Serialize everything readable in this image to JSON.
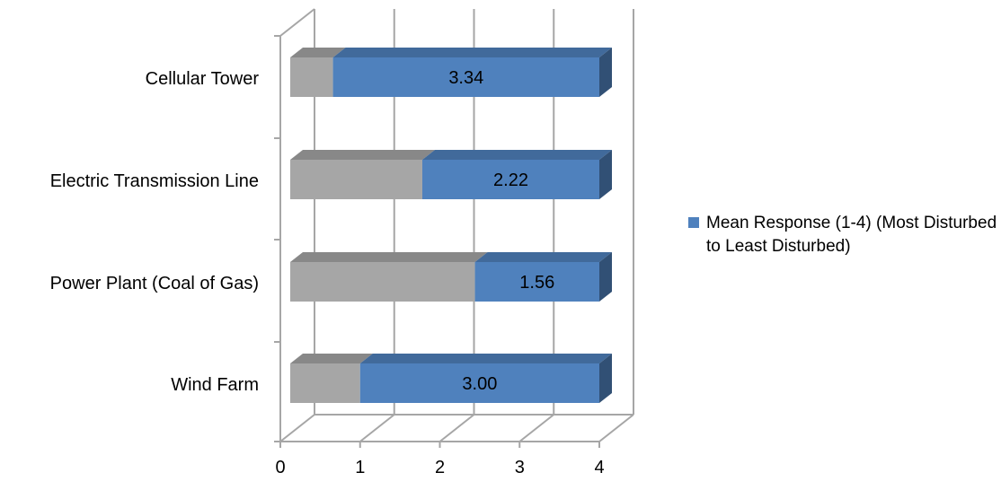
{
  "chart_data": {
    "type": "bar",
    "orientation": "horizontal",
    "style": "3d-stacked",
    "categories": [
      "Cellular Tower",
      "Electric Transmission Line",
      "Power Plant (Coal of Gas)",
      "Wind Farm"
    ],
    "series": [
      {
        "name": "",
        "color": "#a6a6a6",
        "values": [
          0.66,
          1.78,
          2.44,
          1.0
        ]
      },
      {
        "name": "Mean Response (1-4) (Most Disturbed to Least Disturbed)",
        "color": "#4f81bd",
        "values": [
          3.34,
          2.22,
          1.56,
          3.0
        ]
      }
    ],
    "data_labels": [
      "3.34",
      "2.22",
      "1.56",
      "3.00"
    ],
    "x_ticks": [
      "0",
      "1",
      "2",
      "3",
      "4"
    ],
    "xlim": [
      0,
      4
    ],
    "grid": true,
    "legend_position": "right",
    "title": "",
    "xlabel": "",
    "ylabel": ""
  },
  "legend": {
    "label": "Mean Response (1-4) (Most Disturbed to Least Disturbed)"
  }
}
